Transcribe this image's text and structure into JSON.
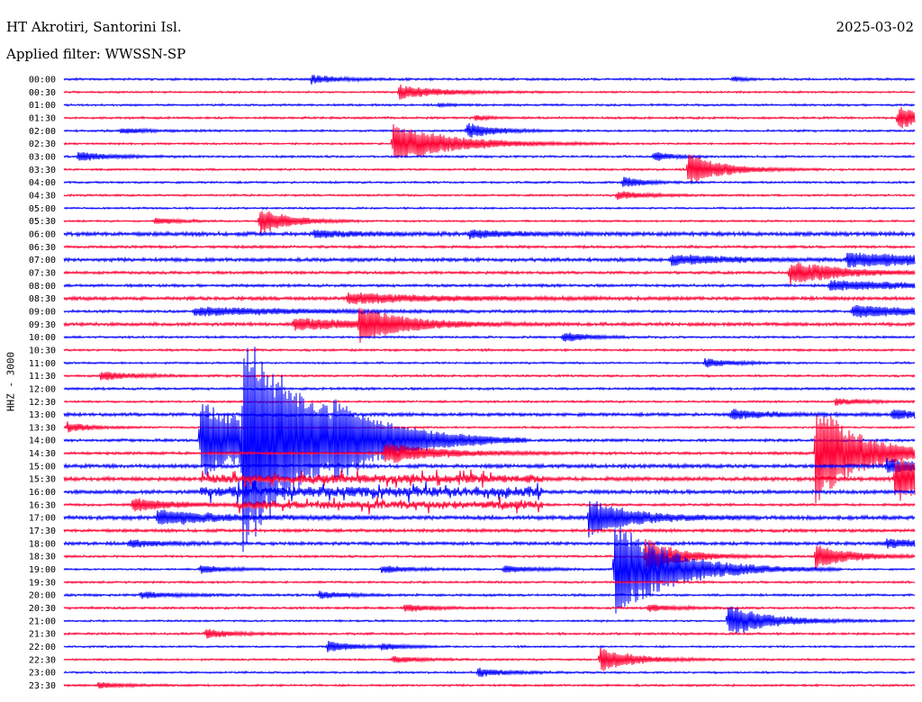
{
  "header": {
    "station": "HT Akrotiri, Santorini Isl.",
    "filter": "Applied filter: WWSSN-SP",
    "date": "2025-03-02",
    "channel": "HHZ - 3000"
  },
  "colors": {
    "line_color_a": "#0000ff",
    "line_color_b": "#ff0033",
    "background": "#ffffff",
    "text": "#000000"
  },
  "chart_data": {
    "type": "line",
    "title": "HT Akrotiri, Santorini Isl.",
    "subtitle": "Applied filter: WWSSN-SP",
    "date": "2025-03-02",
    "ylabel": "HHZ - 3000",
    "row_labels": [
      "00:00",
      "00:30",
      "01:00",
      "01:30",
      "02:00",
      "02:30",
      "03:00",
      "03:30",
      "04:00",
      "04:30",
      "05:00",
      "05:30",
      "06:00",
      "06:30",
      "07:00",
      "07:30",
      "08:00",
      "08:30",
      "09:00",
      "09:30",
      "10:00",
      "10:30",
      "11:00",
      "11:30",
      "12:00",
      "12:30",
      "13:00",
      "13:30",
      "14:00",
      "14:30",
      "15:00",
      "15:30",
      "16:00",
      "16:30",
      "17:00",
      "17:30",
      "18:00",
      "18:30",
      "19:00",
      "19:30",
      "20:00",
      "20:30",
      "21:00",
      "21:30",
      "22:00",
      "22:30",
      "23:00",
      "23:30"
    ],
    "minutes_per_row": 30,
    "events": [
      {
        "row": 0,
        "minute": 8.7,
        "amp": 5,
        "decay": 1.0
      },
      {
        "row": 0,
        "minute": 23.6,
        "amp": 3,
        "decay": 0.4
      },
      {
        "row": 1,
        "minute": 11.8,
        "amp": 8,
        "decay": 1.5
      },
      {
        "row": 2,
        "minute": 13.2,
        "amp": 2,
        "decay": 0.5
      },
      {
        "row": 3,
        "minute": 29.4,
        "amp": 14,
        "decay": 0.8
      },
      {
        "row": 3,
        "minute": 14.5,
        "amp": 3,
        "decay": 0.5
      },
      {
        "row": 4,
        "minute": 14.2,
        "amp": 9,
        "decay": 1.0
      },
      {
        "row": 4,
        "minute": 2.0,
        "amp": 3,
        "decay": 1.0
      },
      {
        "row": 5,
        "minute": 11.6,
        "amp": 23,
        "decay": 2.0
      },
      {
        "row": 6,
        "minute": 0.5,
        "amp": 5,
        "decay": 1.2
      },
      {
        "row": 6,
        "minute": 20.8,
        "amp": 6,
        "decay": 0.6
      },
      {
        "row": 7,
        "minute": 22.0,
        "amp": 18,
        "decay": 1.2
      },
      {
        "row": 8,
        "minute": 19.7,
        "amp": 6,
        "decay": 0.8
      },
      {
        "row": 9,
        "minute": 19.5,
        "amp": 5,
        "decay": 1.0
      },
      {
        "row": 11,
        "minute": 6.9,
        "amp": 16,
        "decay": 1.0
      },
      {
        "row": 11,
        "minute": 3.2,
        "amp": 4,
        "decay": 0.8
      },
      {
        "row": 12,
        "minute": 8.8,
        "amp": 4,
        "decay": 1.5
      },
      {
        "row": 12,
        "minute": 14.3,
        "amp": 4,
        "decay": 1.5
      },
      {
        "row": 14,
        "minute": 27.6,
        "amp": 8,
        "decay": 4.0
      },
      {
        "row": 14,
        "minute": 21.4,
        "amp": 6,
        "decay": 2.0
      },
      {
        "row": 15,
        "minute": 25.6,
        "amp": 13,
        "decay": 1.8
      },
      {
        "row": 16,
        "minute": 27.0,
        "amp": 5,
        "decay": 4.0
      },
      {
        "row": 17,
        "minute": 10.0,
        "amp": 6,
        "decay": 3.0
      },
      {
        "row": 18,
        "minute": 4.6,
        "amp": 5,
        "decay": 4.0
      },
      {
        "row": 18,
        "minute": 27.8,
        "amp": 7,
        "decay": 3.0
      },
      {
        "row": 19,
        "minute": 10.4,
        "amp": 18,
        "decay": 1.5
      },
      {
        "row": 19,
        "minute": 8.1,
        "amp": 7,
        "decay": 2.5
      },
      {
        "row": 20,
        "minute": 17.6,
        "amp": 6,
        "decay": 0.8
      },
      {
        "row": 22,
        "minute": 22.6,
        "amp": 5,
        "decay": 1.0
      },
      {
        "row": 23,
        "minute": 1.3,
        "amp": 5,
        "decay": 1.2
      },
      {
        "row": 25,
        "minute": 27.2,
        "amp": 4,
        "decay": 1.0
      },
      {
        "row": 26,
        "minute": 23.5,
        "amp": 5,
        "decay": 1.5
      },
      {
        "row": 26,
        "minute": 29.2,
        "amp": 5,
        "decay": 1.5
      },
      {
        "row": 27,
        "minute": 0.1,
        "amp": 6,
        "decay": 0.8
      },
      {
        "row": 28,
        "minute": 4.8,
        "amp": 45,
        "decay": 2.5
      },
      {
        "row": 28,
        "minute": 6.3,
        "amp": 105,
        "decay": 2.5
      },
      {
        "row": 28,
        "minute": 9.5,
        "amp": 15,
        "decay": 1.5
      },
      {
        "row": 29,
        "minute": 11.3,
        "amp": 12,
        "decay": 1.8
      },
      {
        "row": 29,
        "minute": 26.5,
        "amp": 60,
        "decay": 1.5
      },
      {
        "row": 30,
        "minute": 29.0,
        "amp": 8,
        "decay": 1.5
      },
      {
        "row": 31,
        "minute": 29.3,
        "amp": 25,
        "decay": 2.0
      },
      {
        "row": 33,
        "minute": 2.4,
        "amp": 8,
        "decay": 1.5
      },
      {
        "row": 34,
        "minute": 3.3,
        "amp": 9,
        "decay": 2.0
      },
      {
        "row": 34,
        "minute": 18.5,
        "amp": 20,
        "decay": 1.5
      },
      {
        "row": 36,
        "minute": 2.3,
        "amp": 4,
        "decay": 1.2
      },
      {
        "row": 36,
        "minute": 29.0,
        "amp": 5,
        "decay": 1.5
      },
      {
        "row": 37,
        "minute": 20.5,
        "amp": 20,
        "decay": 1.2
      },
      {
        "row": 37,
        "minute": 26.5,
        "amp": 14,
        "decay": 1.2
      },
      {
        "row": 38,
        "minute": 19.4,
        "amp": 55,
        "decay": 2.0
      },
      {
        "row": 38,
        "minute": 4.8,
        "amp": 5,
        "decay": 1.0
      },
      {
        "row": 38,
        "minute": 11.2,
        "amp": 4,
        "decay": 1.2
      },
      {
        "row": 38,
        "minute": 15.5,
        "amp": 4,
        "decay": 1.2
      },
      {
        "row": 40,
        "minute": 2.7,
        "amp": 4,
        "decay": 1.2
      },
      {
        "row": 40,
        "minute": 9.0,
        "amp": 4,
        "decay": 1.0
      },
      {
        "row": 41,
        "minute": 12.0,
        "amp": 4,
        "decay": 1.0
      },
      {
        "row": 41,
        "minute": 20.6,
        "amp": 4,
        "decay": 1.0
      },
      {
        "row": 42,
        "minute": 23.4,
        "amp": 18,
        "decay": 1.5
      },
      {
        "row": 43,
        "minute": 5.0,
        "amp": 5,
        "decay": 1.0
      },
      {
        "row": 44,
        "minute": 9.3,
        "amp": 6,
        "decay": 1.0
      },
      {
        "row": 44,
        "minute": 11.2,
        "amp": 3,
        "decay": 0.8
      },
      {
        "row": 45,
        "minute": 11.6,
        "amp": 4,
        "decay": 1.0
      },
      {
        "row": 45,
        "minute": 18.9,
        "amp": 14,
        "decay": 1.2
      },
      {
        "row": 46,
        "minute": 14.6,
        "amp": 5,
        "decay": 1.0
      },
      {
        "row": 47,
        "minute": 1.2,
        "amp": 3,
        "decay": 1.0
      }
    ],
    "tremor_bursts": [
      {
        "row": 32,
        "from_minute": 4.8,
        "to_minute": 16.9,
        "amp": 12
      },
      {
        "row": 31,
        "from_minute": 4.8,
        "to_minute": 16.9,
        "amp": 9
      },
      {
        "row": 33,
        "from_minute": 6.0,
        "to_minute": 16.9,
        "amp": 10
      }
    ]
  }
}
